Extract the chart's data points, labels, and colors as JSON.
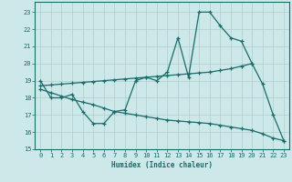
{
  "xlabel": "Humidex (Indice chaleur)",
  "bg_color": "#cce8e8",
  "grid_color": "#b0cccc",
  "line_color": "#1a6b6b",
  "xlim": [
    -0.5,
    23.5
  ],
  "ylim": [
    15,
    23.6
  ],
  "yticks": [
    15,
    16,
    17,
    18,
    19,
    20,
    21,
    22,
    23
  ],
  "xticks": [
    0,
    1,
    2,
    3,
    4,
    5,
    6,
    7,
    8,
    9,
    10,
    11,
    12,
    13,
    14,
    15,
    16,
    17,
    18,
    19,
    20,
    21,
    22,
    23
  ],
  "line1_x": [
    0,
    1,
    2,
    3,
    4,
    5,
    6,
    7,
    8,
    9,
    10,
    11,
    12,
    13,
    14,
    15,
    16,
    17,
    18,
    19,
    20,
    21,
    22,
    23
  ],
  "line1_y": [
    19.0,
    18.0,
    18.0,
    18.2,
    17.2,
    16.5,
    16.5,
    17.2,
    17.3,
    19.0,
    19.2,
    19.0,
    19.5,
    21.5,
    19.2,
    23.0,
    23.0,
    22.2,
    21.5,
    21.3,
    20.0,
    18.8,
    17.0,
    15.5
  ],
  "line2_x": [
    0,
    1,
    2,
    3,
    4,
    5,
    6,
    7,
    8,
    9,
    10,
    11,
    12,
    13,
    14,
    15,
    16,
    17,
    18,
    19,
    20
  ],
  "line2_y": [
    18.7,
    18.75,
    18.8,
    18.85,
    18.9,
    18.95,
    19.0,
    19.05,
    19.1,
    19.15,
    19.2,
    19.25,
    19.3,
    19.35,
    19.4,
    19.45,
    19.5,
    19.6,
    19.7,
    19.85,
    20.0
  ],
  "line3_x": [
    0,
    1,
    2,
    3,
    4,
    5,
    6,
    7,
    8,
    9,
    10,
    11,
    12,
    13,
    14,
    15,
    16,
    17,
    18,
    19,
    20,
    21,
    22,
    23
  ],
  "line3_y": [
    18.5,
    18.3,
    18.1,
    17.9,
    17.75,
    17.6,
    17.4,
    17.2,
    17.1,
    17.0,
    16.9,
    16.8,
    16.7,
    16.65,
    16.6,
    16.55,
    16.5,
    16.4,
    16.3,
    16.2,
    16.1,
    15.9,
    15.65,
    15.5
  ]
}
